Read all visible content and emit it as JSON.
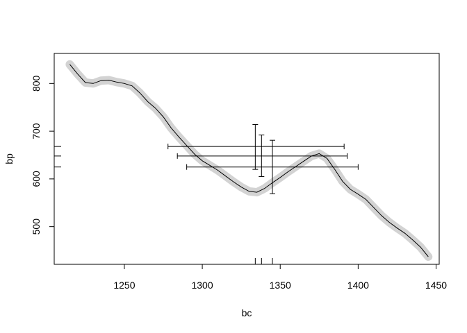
{
  "chart_data": {
    "type": "line",
    "title": "",
    "xlabel": "bc",
    "ylabel": "bp",
    "xlim": [
      1205,
      1452
    ],
    "ylim": [
      421,
      863
    ],
    "grid": false,
    "legend": "none",
    "x_ticks": [
      1250,
      1300,
      1350,
      1400,
      1450
    ],
    "y_ticks": [
      500,
      600,
      700,
      800
    ],
    "colors": {
      "line": "#000000",
      "band": "#d3d3d3",
      "axes": "#000000"
    },
    "series": [
      {
        "type": "line",
        "with_band": true,
        "band_halfwidth": 7,
        "x": [
          1215,
          1220,
          1225,
          1230,
          1235,
          1240,
          1245,
          1250,
          1255,
          1260,
          1265,
          1270,
          1275,
          1280,
          1285,
          1290,
          1295,
          1300,
          1305,
          1310,
          1315,
          1320,
          1325,
          1330,
          1335,
          1340,
          1345,
          1350,
          1355,
          1360,
          1365,
          1370,
          1375,
          1380,
          1385,
          1390,
          1395,
          1400,
          1405,
          1410,
          1415,
          1420,
          1425,
          1430,
          1435,
          1440,
          1445
        ],
        "y": [
          840,
          820,
          802,
          800,
          806,
          807,
          803,
          800,
          795,
          780,
          762,
          748,
          730,
          707,
          688,
          670,
          652,
          638,
          628,
          618,
          606,
          594,
          583,
          574,
          572,
          580,
          592,
          603,
          615,
          626,
          637,
          648,
          653,
          643,
          620,
          595,
          578,
          568,
          557,
          540,
          523,
          509,
          497,
          486,
          472,
          457,
          437
        ]
      },
      {
        "type": "errorbars",
        "points": [
          {
            "x": 1334,
            "y": 668,
            "xerr": [
              1278,
              1391
            ],
            "yerr": [
              620,
              714
            ]
          },
          {
            "x": 1338,
            "y": 648,
            "xerr": [
              1284,
              1393
            ],
            "yerr": [
              605,
              692
            ]
          },
          {
            "x": 1345,
            "y": 625,
            "xerr": [
              1290,
              1400
            ],
            "yerr": [
              569,
              681
            ]
          }
        ]
      },
      {
        "type": "rug_x",
        "values": [
          1334,
          1338,
          1345
        ]
      },
      {
        "type": "rug_y",
        "values": [
          668,
          648,
          625
        ]
      }
    ]
  }
}
